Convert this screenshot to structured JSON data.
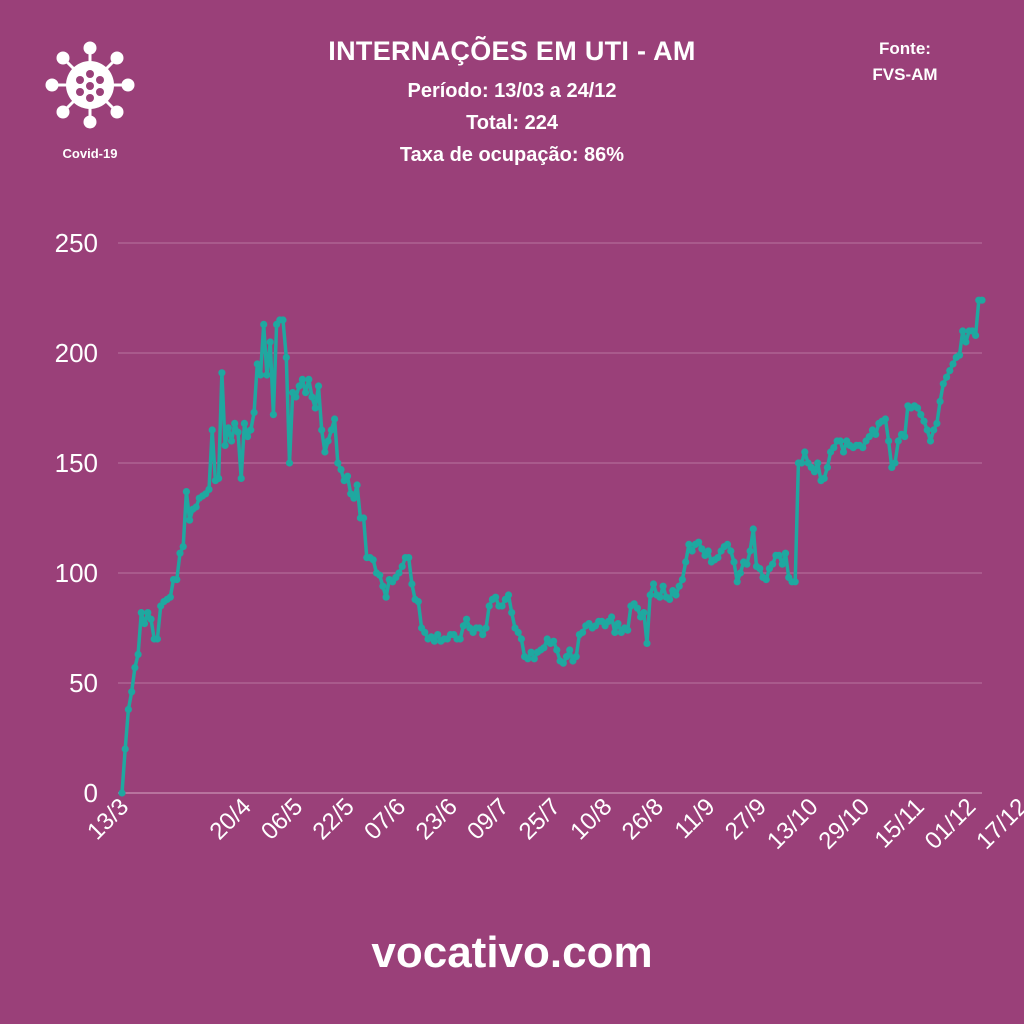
{
  "header": {
    "title": "INTERNAÇÕES EM UTI - AM",
    "period": "Período: 13/03 a 24/12",
    "total": "Total: 224",
    "occupancy": "Taxa de ocupação: 86%",
    "source_label": "Fonte:",
    "source_name": "FVS-AM",
    "logo_label": "Covid-19",
    "logo_icon": "virus-icon"
  },
  "footer": {
    "site": "vocativo.com"
  },
  "colors": {
    "background": "#9a4079",
    "line": "#1fa8a0",
    "grid": "#b8739f",
    "text": "#ffffff"
  },
  "chart_data": {
    "type": "line",
    "title": "INTERNAÇÕES EM UTI - AM",
    "xlabel": "",
    "ylabel": "",
    "ylim": [
      0,
      250
    ],
    "yticks": [
      0,
      50,
      100,
      150,
      200,
      250
    ],
    "grid": true,
    "xticks": [
      {
        "label": "13/3",
        "index": 0
      },
      {
        "label": "20/4",
        "index": 38
      },
      {
        "label": "06/5",
        "index": 54
      },
      {
        "label": "22/5",
        "index": 70
      },
      {
        "label": "07/6",
        "index": 86
      },
      {
        "label": "23/6",
        "index": 102
      },
      {
        "label": "09/7",
        "index": 118
      },
      {
        "label": "25/7",
        "index": 134
      },
      {
        "label": "10/8",
        "index": 150
      },
      {
        "label": "26/8",
        "index": 166
      },
      {
        "label": "11/9",
        "index": 182
      },
      {
        "label": "27/9",
        "index": 198
      },
      {
        "label": "13/10",
        "index": 214
      },
      {
        "label": "29/10",
        "index": 230
      },
      {
        "label": "15/11",
        "index": 247
      },
      {
        "label": "01/12",
        "index": 263
      },
      {
        "label": "17/12",
        "index": 279
      }
    ],
    "values": [
      0,
      20,
      38,
      46,
      57,
      63,
      82,
      77,
      82,
      79,
      70,
      70,
      85,
      87,
      88,
      89,
      97,
      97,
      109,
      112,
      137,
      124,
      129,
      130,
      134,
      135,
      136,
      138,
      165,
      142,
      143,
      191,
      158,
      166,
      160,
      168,
      164,
      143,
      168,
      162,
      165,
      173,
      195,
      190,
      213,
      190,
      205,
      172,
      213,
      215,
      215,
      198,
      150,
      182,
      180,
      185,
      188,
      182,
      188,
      180,
      175,
      185,
      165,
      155,
      160,
      165,
      170,
      150,
      147,
      142,
      144,
      136,
      134,
      140,
      125,
      125,
      107,
      107,
      106,
      100,
      99,
      94,
      89,
      97,
      96,
      98,
      100,
      103,
      107,
      107,
      95,
      88,
      87,
      75,
      73,
      70,
      71,
      69,
      72,
      69,
      70,
      70,
      72,
      72,
      70,
      70,
      76,
      79,
      75,
      73,
      75,
      75,
      72,
      75,
      85,
      88,
      89,
      85,
      85,
      88,
      90,
      82,
      75,
      73,
      70,
      62,
      61,
      64,
      61,
      64,
      65,
      66,
      70,
      68,
      69,
      65,
      60,
      59,
      62,
      65,
      60,
      62,
      72,
      73,
      76,
      77,
      75,
      76,
      78,
      78,
      76,
      78,
      80,
      73,
      77,
      73,
      75,
      74,
      85,
      86,
      84,
      80,
      82,
      68,
      90,
      95,
      90,
      89,
      94,
      89,
      88,
      92,
      90,
      94,
      97,
      105,
      113,
      110,
      113,
      114,
      111,
      108,
      110,
      105,
      106,
      107,
      110,
      112,
      113,
      110,
      105,
      96,
      100,
      105,
      104,
      110,
      120,
      103,
      102,
      98,
      97,
      102,
      104,
      108,
      108,
      104,
      109,
      98,
      96,
      96,
      150,
      150,
      155,
      150,
      148,
      146,
      150,
      142,
      143,
      148,
      155,
      157,
      160,
      160,
      155,
      160,
      158,
      157,
      158,
      158,
      157,
      160,
      162,
      165,
      163,
      168,
      169,
      170,
      160,
      148,
      150,
      160,
      163,
      162,
      176,
      175,
      176,
      175,
      172,
      169,
      165,
      160,
      165,
      168,
      178,
      186,
      189,
      192,
      195,
      198,
      199,
      210,
      205,
      210,
      210,
      208,
      224,
      224
    ]
  }
}
